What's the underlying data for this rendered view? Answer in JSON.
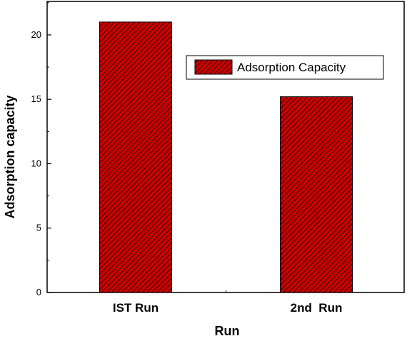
{
  "chart_data": {
    "type": "bar",
    "categories": [
      "IST Run",
      "2nd  Run"
    ],
    "series": [
      {
        "name": "Adsorption Capacity",
        "values": [
          21.0,
          15.2
        ]
      }
    ],
    "xlabel": "Run",
    "ylabel": "Adsorption capacity",
    "ylim": [
      0,
      22.6
    ],
    "yticks": [
      0,
      5,
      10,
      15,
      20
    ],
    "grid": false,
    "legend_position": "top-right",
    "bar_fill": "#cc0000",
    "bar_pattern": "diagonal-hatch",
    "hatch_color": "#000000"
  }
}
